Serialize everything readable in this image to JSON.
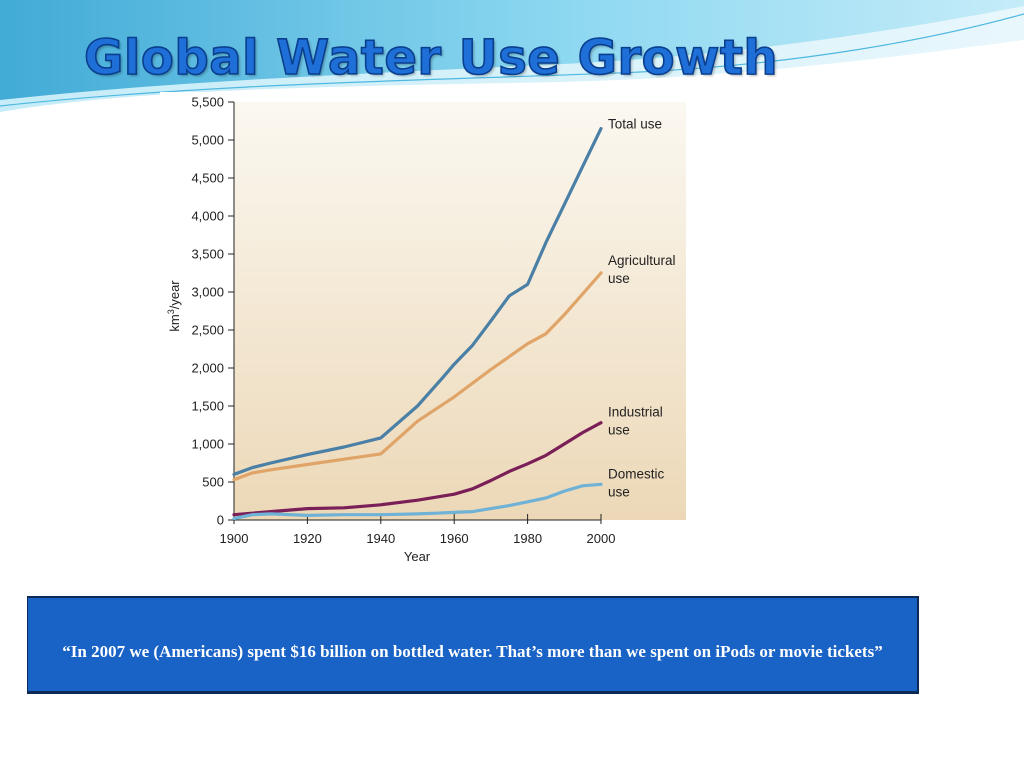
{
  "slide": {
    "title": "Global Water Use Growth",
    "quote": "“In 2007 we (Americans) spent $16 billion on bottled water. That’s more than we spent on iPods or movie tickets”"
  },
  "colors": {
    "total": "#4a7fa6",
    "agricultural": "#e0a468",
    "industrial": "#7b1f58",
    "domestic": "#6fb2d6",
    "title": "#1f6fd8",
    "quote_bg": "#1a63c6"
  },
  "chart_data": {
    "type": "line",
    "xlabel": "Year",
    "ylabel": "km³/year",
    "ylabel_base": "km",
    "ylabel_sup": "3",
    "ylabel_rest": "/year",
    "xlim": [
      1900,
      2000
    ],
    "ylim": [
      0,
      5500
    ],
    "grid": false,
    "x_ticks": [
      "1900",
      "1920",
      "1940",
      "1960",
      "1980",
      "2000"
    ],
    "y_ticks": [
      "0",
      "500",
      "1,000",
      "1,500",
      "2,000",
      "2,500",
      "3,000",
      "3,500",
      "4,000",
      "4,500",
      "5,000",
      "5,500"
    ],
    "series": [
      {
        "name": "Total use",
        "label_lines": [
          "Total use"
        ],
        "color_key": "total",
        "points": [
          [
            1900,
            600
          ],
          [
            1905,
            690
          ],
          [
            1910,
            750
          ],
          [
            1920,
            860
          ],
          [
            1930,
            960
          ],
          [
            1935,
            1020
          ],
          [
            1940,
            1080
          ],
          [
            1950,
            1500
          ],
          [
            1957,
            1880
          ],
          [
            1960,
            2050
          ],
          [
            1965,
            2300
          ],
          [
            1970,
            2620
          ],
          [
            1975,
            2950
          ],
          [
            1980,
            3100
          ],
          [
            1985,
            3650
          ],
          [
            1990,
            4150
          ],
          [
            1995,
            4650
          ],
          [
            2000,
            5150
          ]
        ]
      },
      {
        "name": "Agricultural use",
        "label_lines": [
          "Agricultural",
          "use"
        ],
        "color_key": "agricultural",
        "points": [
          [
            1900,
            530
          ],
          [
            1905,
            620
          ],
          [
            1910,
            660
          ],
          [
            1920,
            730
          ],
          [
            1930,
            800
          ],
          [
            1940,
            870
          ],
          [
            1950,
            1300
          ],
          [
            1960,
            1620
          ],
          [
            1970,
            1980
          ],
          [
            1980,
            2320
          ],
          [
            1985,
            2450
          ],
          [
            1990,
            2700
          ],
          [
            2000,
            3250
          ]
        ]
      },
      {
        "name": "Industrial use",
        "label_lines": [
          "Industrial",
          "use"
        ],
        "color_key": "industrial",
        "points": [
          [
            1900,
            70
          ],
          [
            1910,
            110
          ],
          [
            1920,
            150
          ],
          [
            1930,
            160
          ],
          [
            1940,
            200
          ],
          [
            1950,
            260
          ],
          [
            1960,
            340
          ],
          [
            1965,
            410
          ],
          [
            1970,
            520
          ],
          [
            1975,
            640
          ],
          [
            1980,
            740
          ],
          [
            1985,
            850
          ],
          [
            1990,
            1000
          ],
          [
            1995,
            1150
          ],
          [
            2000,
            1280
          ]
        ]
      },
      {
        "name": "Domestic use",
        "label_lines": [
          "Domestic",
          "use"
        ],
        "color_key": "domestic",
        "points": [
          [
            1900,
            20
          ],
          [
            1905,
            70
          ],
          [
            1910,
            80
          ],
          [
            1920,
            60
          ],
          [
            1930,
            70
          ],
          [
            1940,
            70
          ],
          [
            1950,
            80
          ],
          [
            1955,
            90
          ],
          [
            1960,
            100
          ],
          [
            1965,
            110
          ],
          [
            1970,
            150
          ],
          [
            1975,
            190
          ],
          [
            1980,
            240
          ],
          [
            1985,
            290
          ],
          [
            1990,
            380
          ],
          [
            1995,
            450
          ],
          [
            2000,
            470
          ]
        ]
      }
    ]
  }
}
